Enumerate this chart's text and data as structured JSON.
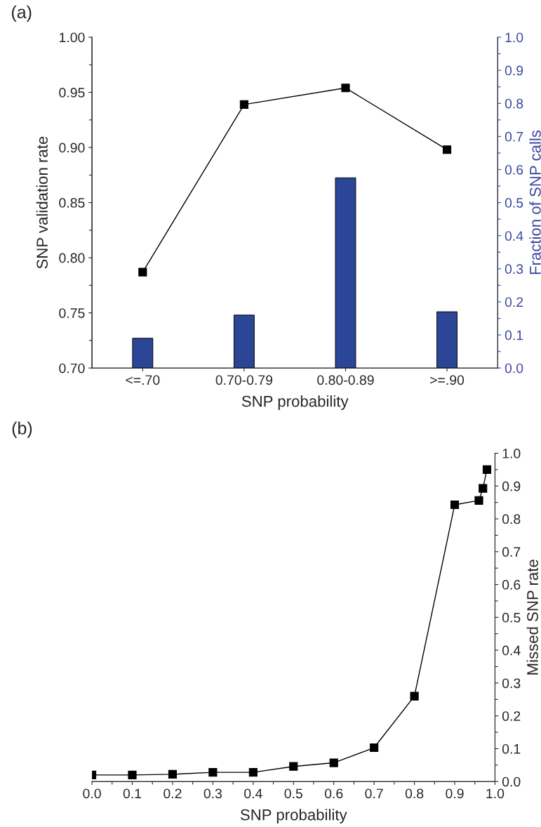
{
  "chart_data": [
    {
      "type": "bar",
      "title": "(a)",
      "categories": [
        "<=.70",
        "0.70-0.79",
        "0.80-0.89",
        ">=.90"
      ],
      "xlabel": "SNP probability",
      "ylabel": "SNP validation rate",
      "y2label": "Fraction of SNP calls",
      "ylim": [
        0.7,
        1.0
      ],
      "yticks": [
        {
          "value": 0.7,
          "label": "0.70"
        },
        {
          "value": 0.725,
          "label": null
        },
        {
          "value": 0.75,
          "label": "0.75"
        },
        {
          "value": 0.775,
          "label": null
        },
        {
          "value": 0.8,
          "label": "0.80"
        },
        {
          "value": 0.825,
          "label": null
        },
        {
          "value": 0.85,
          "label": "0.85"
        },
        {
          "value": 0.875,
          "label": null
        },
        {
          "value": 0.9,
          "label": "0.90"
        },
        {
          "value": 0.925,
          "label": null
        },
        {
          "value": 0.95,
          "label": "0.95"
        },
        {
          "value": 0.975,
          "label": null
        },
        {
          "value": 1.0,
          "label": "1.00"
        }
      ],
      "y2lim": [
        0.0,
        1.0
      ],
      "y2ticks": [
        {
          "value": 0,
          "label": "0.0"
        },
        {
          "value": 0.05,
          "label": null
        },
        0.1,
        {
          "value": 0.15,
          "label": null
        },
        0.2,
        {
          "value": 0.25,
          "label": null
        },
        0.3,
        {
          "value": 0.35,
          "label": null
        },
        0.4,
        {
          "value": 0.45,
          "label": null
        },
        0.5,
        {
          "value": 0.55,
          "label": null
        },
        0.6,
        {
          "value": 0.65,
          "label": null
        },
        0.7,
        {
          "value": 0.75,
          "label": null
        },
        0.8,
        {
          "value": 0.85,
          "label": null
        },
        0.9,
        {
          "value": 0.95,
          "label": null
        },
        {
          "value": 1,
          "label": "1.0"
        }
      ],
      "series": [
        {
          "type": "line",
          "color": "#000000",
          "values": [
            0.787,
            0.939,
            0.954,
            0.898
          ],
          "marker": "square",
          "line_style": "solid"
        },
        {
          "type": "bar",
          "axis": "y2",
          "color": "#2b4696",
          "values": [
            0.09,
            0.16,
            0.575,
            0.17
          ]
        }
      ],
      "grid": false,
      "legend": false
    },
    {
      "type": "line",
      "title": "(b)",
      "xlabel": "SNP probability",
      "y2label": "Missed SNP rate",
      "x": [
        0.0,
        0.1,
        0.2,
        0.3,
        0.4,
        0.5,
        0.6,
        0.7,
        0.8,
        0.9,
        0.96,
        0.97,
        0.98
      ],
      "xlim": [
        0.0,
        1.0
      ],
      "xticks": [
        {
          "value": 0,
          "label": "0.0"
        },
        {
          "value": 0.05,
          "label": null
        },
        0.1,
        {
          "value": 0.15,
          "label": null
        },
        0.2,
        {
          "value": 0.25,
          "label": null
        },
        0.3,
        {
          "value": 0.35,
          "label": null
        },
        0.4,
        {
          "value": 0.45,
          "label": null
        },
        0.5,
        {
          "value": 0.55,
          "label": null
        },
        0.6,
        {
          "value": 0.65,
          "label": null
        },
        0.7,
        {
          "value": 0.75,
          "label": null
        },
        0.8,
        {
          "value": 0.85,
          "label": null
        },
        0.9,
        {
          "value": 0.95,
          "label": null
        },
        {
          "value": 1,
          "label": "1.0"
        }
      ],
      "y2lim": [
        0.0,
        1.0
      ],
      "y2ticks": [
        {
          "value": 0,
          "label": "0.0"
        },
        {
          "value": 0.05,
          "label": null
        },
        0.1,
        {
          "value": 0.15,
          "label": null
        },
        0.2,
        {
          "value": 0.25,
          "label": null
        },
        0.3,
        {
          "value": 0.35,
          "label": null
        },
        0.4,
        {
          "value": 0.45,
          "label": null
        },
        0.5,
        {
          "value": 0.55,
          "label": null
        },
        0.6,
        {
          "value": 0.65,
          "label": null
        },
        0.7,
        {
          "value": 0.75,
          "label": null
        },
        0.8,
        {
          "value": 0.85,
          "label": null
        },
        0.9,
        {
          "value": 0.95,
          "label": null
        },
        {
          "value": 1,
          "label": "1.0"
        }
      ],
      "series": [
        {
          "axis": "y2",
          "color": "#000000",
          "values": [
            0.02,
            0.02,
            0.022,
            0.028,
            0.028,
            0.046,
            0.057,
            0.103,
            0.26,
            0.843,
            0.856,
            0.893,
            0.95
          ]
        }
      ],
      "marker": "square",
      "line_style": "solid",
      "grid": false,
      "legend": false
    }
  ]
}
